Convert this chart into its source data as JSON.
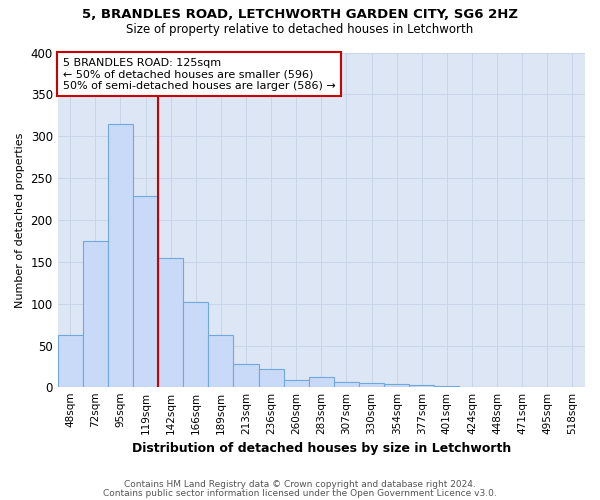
{
  "title1": "5, BRANDLES ROAD, LETCHWORTH GARDEN CITY, SG6 2HZ",
  "title2": "Size of property relative to detached houses in Letchworth",
  "xlabel": "Distribution of detached houses by size in Letchworth",
  "ylabel": "Number of detached properties",
  "bar_labels": [
    "48sqm",
    "72sqm",
    "95sqm",
    "119sqm",
    "142sqm",
    "166sqm",
    "189sqm",
    "213sqm",
    "236sqm",
    "260sqm",
    "283sqm",
    "307sqm",
    "330sqm",
    "354sqm",
    "377sqm",
    "401sqm",
    "424sqm",
    "448sqm",
    "471sqm",
    "495sqm",
    "518sqm"
  ],
  "bar_values": [
    62,
    175,
    315,
    228,
    155,
    102,
    62,
    28,
    22,
    9,
    12,
    7,
    5,
    4,
    3,
    2,
    1,
    1,
    0,
    1,
    1
  ],
  "bar_color": "#c9daf8",
  "bar_edge_color": "#6fa8dc",
  "grid_color": "#c8d4e8",
  "plot_bg_color": "#dce6f5",
  "fig_bg_color": "#ffffff",
  "annotation_box_color": "#ffffff",
  "annotation_border_color": "#cc0000",
  "annotation_text": "5 BRANDLES ROAD: 125sqm\n← 50% of detached houses are smaller (596)\n50% of semi-detached houses are larger (586) →",
  "vline_x": 3.5,
  "vline_color": "#cc0000",
  "footer1": "Contains HM Land Registry data © Crown copyright and database right 2024.",
  "footer2": "Contains public sector information licensed under the Open Government Licence v3.0.",
  "ylim": [
    0,
    400
  ],
  "yticks": [
    0,
    50,
    100,
    150,
    200,
    250,
    300,
    350,
    400
  ]
}
